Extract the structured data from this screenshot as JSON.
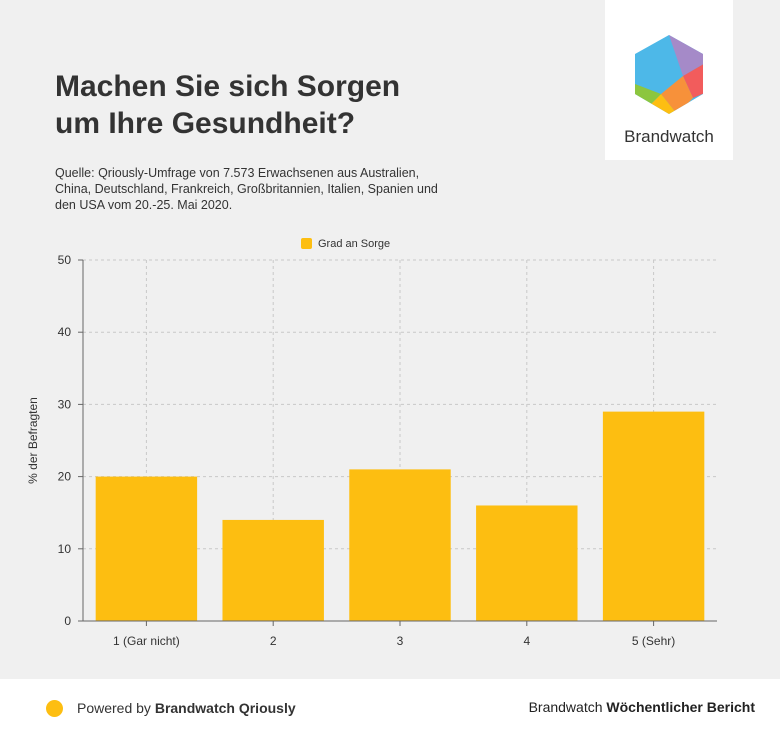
{
  "header": {
    "title_line1": "Machen Sie sich Sorgen",
    "title_line2": "um Ihre Gesundheit?",
    "source_text": "Quelle: Qriously-Umfrage von 7.573 Erwachsenen aus Australien, China, Deutschland, Frankreich, Großbritannien, Italien, Spanien und den USA vom 20.-25. Mai 2020."
  },
  "logo": {
    "name": "Brandwatch",
    "icon": "brandwatch-hexagon-logo"
  },
  "chart_data": {
    "type": "bar",
    "categories": [
      "1 (Gar nicht)",
      "2",
      "3",
      "4",
      "5 (Sehr)"
    ],
    "series": [
      {
        "name": "Grad an Sorge",
        "values": [
          20,
          14,
          21,
          16,
          29
        ],
        "color": "#fdbe11"
      }
    ],
    "xlabel": "",
    "ylabel": "% der Befragten",
    "ylim": [
      0,
      50
    ],
    "yticks": [
      0,
      10,
      20,
      30,
      40,
      50
    ],
    "grid": true,
    "legend": "top-center"
  },
  "footer": {
    "powered_prefix": "Powered by ",
    "powered_brand": "Brandwatch Qriously",
    "report_prefix": "Brandwatch ",
    "report_name": "Wöchentlicher Bericht"
  },
  "colors": {
    "bar": "#fdbe11",
    "panel_background": "#f0f0f0",
    "text": "#333333"
  }
}
